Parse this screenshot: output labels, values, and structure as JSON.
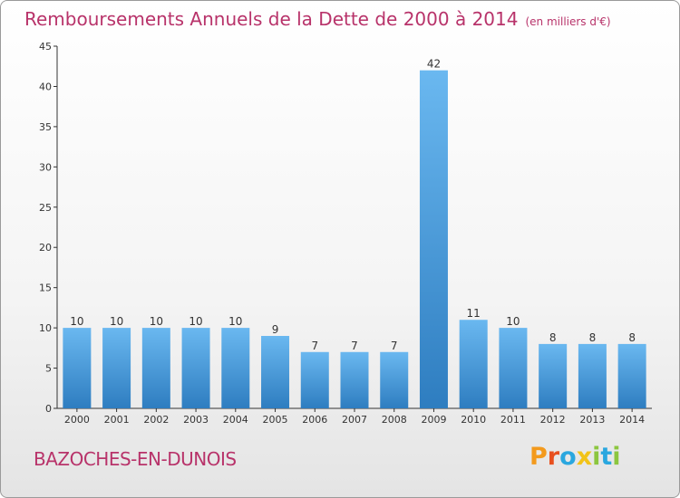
{
  "title": "Remboursements Annuels de la Dette de 2000 à 2014",
  "unit": "(en milliers d'€)",
  "commune": "BAZOCHES-EN-DUNOIS",
  "logo": "Proxiti",
  "colors": {
    "title": "#b8336a",
    "bar_light": "#64b4ee",
    "bar_dark": "#2f7fc2",
    "axis": "#333333"
  },
  "chart_data": {
    "type": "bar",
    "categories": [
      "2000",
      "2001",
      "2002",
      "2003",
      "2004",
      "2005",
      "2006",
      "2007",
      "2008",
      "2009",
      "2010",
      "2011",
      "2012",
      "2013",
      "2014"
    ],
    "values": [
      10,
      10,
      10,
      10,
      10,
      9,
      7,
      7,
      7,
      42,
      11,
      10,
      8,
      8,
      8
    ],
    "data_labels": [
      "10",
      "10",
      "10",
      "10",
      "10",
      "9",
      "7",
      "7",
      "7",
      "42",
      "11",
      "10",
      "8",
      "8",
      "8"
    ],
    "ylim": [
      0,
      45
    ],
    "yticks": [
      0,
      5,
      10,
      15,
      20,
      25,
      30,
      35,
      40,
      45
    ],
    "title": "Remboursements Annuels de la Dette de 2000 à 2014",
    "xlabel": "",
    "ylabel": "",
    "grid": false,
    "legend": false
  }
}
